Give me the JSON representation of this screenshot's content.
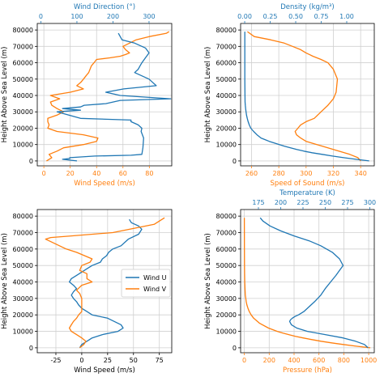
{
  "colors": {
    "blue": "#1f77b4",
    "orange": "#ff7f0e",
    "grid": "#d0d0d0",
    "axis": "#000000"
  },
  "chart_data": [
    {
      "type": "line",
      "ylabel": "Height Above Sea Level (m)",
      "ylim": [
        -3000,
        84000
      ],
      "yticks": [
        0,
        10000,
        20000,
        30000,
        40000,
        50000,
        60000,
        70000,
        80000
      ],
      "grid": true,
      "bottom_axis": {
        "label": "Wind Speed (m/s)",
        "lim": [
          -5,
          97
        ],
        "ticks": [
          0,
          20,
          40,
          60,
          80
        ],
        "color": "#ff7f0e"
      },
      "top_axis": {
        "label": "Wind Direction (°)",
        "lim": [
          -10,
          363
        ],
        "ticks": [
          0,
          100,
          200,
          300
        ],
        "color": "#1f77b4"
      },
      "series": [
        {
          "axis": "bottom",
          "color": "#ff7f0e",
          "x": [
            2,
            6,
            4,
            10,
            15,
            30,
            40,
            41,
            30,
            10,
            3,
            4,
            3,
            3,
            10,
            15,
            10,
            6,
            5,
            12,
            5,
            20,
            30,
            25,
            28,
            30,
            32,
            34,
            35,
            36,
            38,
            40,
            50,
            58,
            62,
            65,
            62,
            60,
            65,
            70,
            80,
            93,
            95
          ],
          "y": [
            0,
            2000,
            4000,
            6000,
            8000,
            10000,
            12000,
            14000,
            16000,
            18000,
            20000,
            22000,
            24000,
            26000,
            28000,
            30000,
            32000,
            34000,
            36000,
            38000,
            40000,
            42000,
            44000,
            46000,
            48000,
            50000,
            52000,
            54000,
            56000,
            58000,
            60000,
            62000,
            63000,
            64000,
            65000,
            66000,
            68000,
            70000,
            72000,
            74000,
            76000,
            78000,
            79000
          ]
        },
        {
          "axis": "top",
          "color": "#1f77b4",
          "x": [
            100,
            60,
            80,
            80,
            150,
            250,
            280,
            283,
            285,
            278,
            280,
            270,
            260,
            250,
            250,
            110,
            45,
            110,
            60,
            110,
            120,
            180,
            220,
            360,
            220,
            180,
            230,
            320,
            310,
            300,
            260,
            270,
            275,
            280,
            290,
            300,
            290,
            260,
            225,
            220,
            215
          ],
          "y": [
            0,
            1000,
            1500,
            2000,
            3000,
            3500,
            4000,
            8000,
            14000,
            18000,
            20000,
            22000,
            23000,
            24000,
            25000,
            26000,
            30000,
            31000,
            32000,
            33000,
            34000,
            35000,
            37000,
            38000,
            40000,
            42000,
            44000,
            46000,
            48000,
            50000,
            54000,
            56000,
            58000,
            60000,
            63000,
            66000,
            69000,
            72000,
            74000,
            76000,
            78000
          ]
        }
      ]
    },
    {
      "type": "line",
      "ylabel": "Height Above Sea Level (m)",
      "ylim": [
        -3000,
        84000
      ],
      "yticks": [
        0,
        10000,
        20000,
        30000,
        40000,
        50000,
        60000,
        70000,
        80000
      ],
      "grid": true,
      "bottom_axis": {
        "label": "Speed of Sound (m/s)",
        "lim": [
          252,
          350
        ],
        "ticks": [
          260,
          280,
          300,
          320,
          340
        ],
        "color": "#ff7f0e"
      },
      "top_axis": {
        "label": "Density (kg/m³)",
        "lim": [
          -0.04,
          1.27
        ],
        "ticks": [
          0.0,
          0.25,
          0.5,
          0.75,
          1.0
        ],
        "tick_labels": [
          "0.00",
          "0.25",
          "0.50",
          "0.75",
          "1.00"
        ],
        "color": "#1f77b4"
      },
      "series": [
        {
          "axis": "bottom",
          "color": "#ff7f0e",
          "x": [
            340,
            338,
            332,
            324,
            316,
            308,
            300,
            296,
            293,
            292,
            294,
            296,
            300,
            306,
            311,
            316,
            320,
            322,
            323,
            320,
            316,
            311,
            305,
            300,
            296,
            290,
            284,
            274,
            262,
            257
          ],
          "y": [
            0,
            2000,
            4000,
            6000,
            8000,
            10000,
            12000,
            14000,
            16000,
            18000,
            20000,
            22000,
            24000,
            26000,
            30000,
            34000,
            38000,
            42000,
            50000,
            56000,
            60000,
            62000,
            64000,
            66000,
            68000,
            70000,
            72000,
            74000,
            76000,
            79000
          ]
        },
        {
          "axis": "top",
          "color": "#1f77b4",
          "x": [
            1.22,
            1.09,
            0.97,
            0.86,
            0.76,
            0.66,
            0.58,
            0.51,
            0.45,
            0.39,
            0.34,
            0.29,
            0.24,
            0.2,
            0.16,
            0.12,
            0.088,
            0.06,
            0.045,
            0.034,
            0.025,
            0.018,
            0.013,
            0.009,
            0.006,
            0.004,
            0.003,
            0.002,
            0.0015,
            0.001,
            0.001
          ],
          "y": [
            0,
            1000,
            2000,
            3000,
            4000,
            5000,
            6000,
            7000,
            8000,
            9000,
            10000,
            11000,
            12000,
            13000,
            14000,
            16000,
            18000,
            20000,
            22000,
            24000,
            26000,
            28000,
            30000,
            32000,
            34000,
            36000,
            40000,
            45000,
            50000,
            60000,
            79000
          ]
        }
      ]
    },
    {
      "type": "line",
      "ylabel": "Height Above Sea Level (m)",
      "ylim": [
        -3000,
        84000
      ],
      "yticks": [
        0,
        10000,
        20000,
        30000,
        40000,
        50000,
        60000,
        70000,
        80000
      ],
      "grid": true,
      "bottom_axis": {
        "label": "Wind Speed (m/s)",
        "lim": [
          -43,
          87
        ],
        "ticks": [
          -25,
          0,
          25,
          50,
          75
        ],
        "color": "#000000"
      },
      "legend": {
        "placement": "center-right"
      },
      "series": [
        {
          "name": "Wind U",
          "axis": "bottom",
          "color": "#1f77b4",
          "x": [
            -2,
            0,
            5,
            10,
            20,
            35,
            40,
            38,
            25,
            10,
            5,
            0,
            -3,
            -5,
            -8,
            -10,
            -8,
            -5,
            -8,
            -12,
            -10,
            -5,
            0,
            5,
            10,
            18,
            20,
            24,
            26,
            30,
            38,
            45,
            55,
            58,
            55,
            48,
            46
          ],
          "y": [
            0,
            2000,
            4000,
            6000,
            8000,
            10000,
            12000,
            14000,
            18000,
            20000,
            22000,
            24000,
            26000,
            28000,
            30000,
            32000,
            34000,
            36000,
            38000,
            40000,
            42000,
            44000,
            46000,
            48000,
            50000,
            52000,
            54000,
            56000,
            58000,
            60000,
            62000,
            66000,
            69000,
            72000,
            74000,
            76000,
            78000
          ]
        },
        {
          "name": "Wind V",
          "axis": "bottom",
          "color": "#ff7f0e",
          "x": [
            -2,
            2,
            4,
            0,
            -5,
            -10,
            -12,
            -10,
            -8,
            -5,
            -3,
            0,
            0,
            0,
            -2,
            -5,
            0,
            10,
            5,
            5,
            -2,
            0,
            8,
            10,
            -5,
            -15,
            -25,
            -35,
            -30,
            -10,
            30,
            70,
            80
          ],
          "y": [
            0,
            2000,
            4000,
            6000,
            8000,
            10000,
            12000,
            14000,
            16000,
            18000,
            20000,
            22000,
            26000,
            30000,
            33000,
            35000,
            38000,
            40000,
            42000,
            45000,
            47000,
            50000,
            52000,
            54000,
            58000,
            60000,
            63000,
            66000,
            67000,
            68000,
            70000,
            75000,
            79000
          ]
        }
      ]
    },
    {
      "type": "line",
      "ylabel": "Height Above Sea Level (m)",
      "ylim": [
        -3000,
        84000
      ],
      "yticks": [
        0,
        10000,
        20000,
        30000,
        40000,
        50000,
        60000,
        70000,
        80000
      ],
      "grid": true,
      "bottom_axis": {
        "label": "Pressure (hPa)",
        "lim": [
          -30,
          1045
        ],
        "ticks": [
          0,
          200,
          400,
          600,
          800,
          1000
        ],
        "color": "#ff7f0e"
      },
      "top_axis": {
        "label": "Temperature (K)",
        "lim": [
          155,
          305
        ],
        "ticks": [
          175,
          200,
          225,
          250,
          275,
          300
        ],
        "color": "#1f77b4"
      },
      "series": [
        {
          "axis": "bottom",
          "color": "#ff7f0e",
          "x": [
            1013,
            899,
            795,
            701,
            617,
            540,
            472,
            411,
            357,
            308,
            265,
            194,
            121,
            75,
            55,
            40,
            29,
            21,
            15,
            12,
            8,
            6,
            3,
            2,
            1,
            0.5,
            0.2
          ],
          "y": [
            0,
            1000,
            2000,
            3000,
            4000,
            5000,
            6000,
            7000,
            8000,
            9000,
            10000,
            12000,
            15000,
            18000,
            20000,
            22000,
            24000,
            26000,
            28000,
            30000,
            32000,
            35000,
            40000,
            45000,
            50000,
            60000,
            79000
          ]
        },
        {
          "axis": "top",
          "color": "#1f77b4",
          "x": [
            298,
            294,
            284,
            270,
            250,
            230,
            218,
            212,
            210,
            211,
            213,
            216,
            220,
            226,
            232,
            238,
            245,
            250,
            256,
            262,
            266,
            270,
            266,
            258,
            245,
            232,
            215,
            200,
            188,
            180,
            177
          ],
          "y": [
            0,
            2000,
            4000,
            6000,
            8000,
            10000,
            12000,
            14000,
            16000,
            17000,
            18000,
            19000,
            20000,
            22000,
            25000,
            28000,
            32000,
            36000,
            40000,
            44000,
            47000,
            50000,
            54000,
            58000,
            62000,
            65000,
            68000,
            71000,
            74000,
            77000,
            79000
          ]
        }
      ]
    }
  ]
}
